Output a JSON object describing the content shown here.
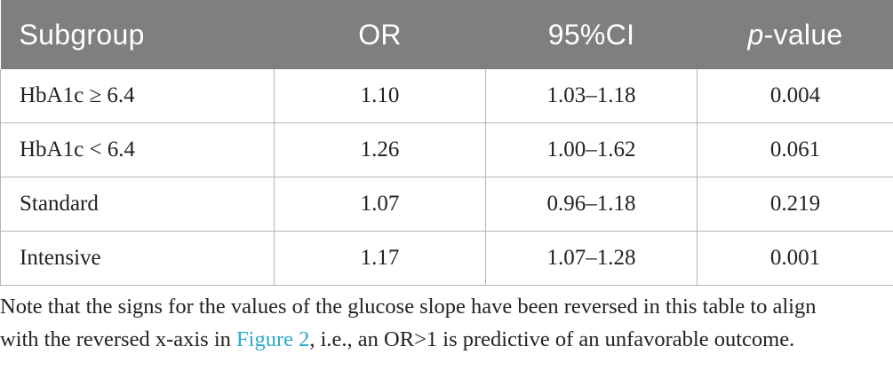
{
  "table": {
    "headers": {
      "subgroup": "Subgroup",
      "or": "OR",
      "ci": "95%CI",
      "p_italic": "p",
      "p_rest": "-value"
    },
    "rows": [
      {
        "subgroup": "HbA1c ≥ 6.4",
        "or": "1.10",
        "ci": "1.03–1.18",
        "p": "0.004"
      },
      {
        "subgroup": "HbA1c < 6.4",
        "or": "1.26",
        "ci": "1.00–1.62",
        "p": "0.061"
      },
      {
        "subgroup": "Standard",
        "or": "1.07",
        "ci": "0.96–1.18",
        "p": "0.219"
      },
      {
        "subgroup": "Intensive",
        "or": "1.17",
        "ci": "1.07–1.28",
        "p": "0.001"
      }
    ]
  },
  "note": {
    "line1": "Note that the signs for the values of the glucose slope have been reversed in this table to align",
    "line2_a": "with the reversed x-axis in ",
    "line2_link": "Figure 2",
    "line2_b": ", i.e., an OR>1 is predictive of an unfavorable outcome."
  },
  "colors": {
    "header_bg": "#7f7f7f",
    "header_text": "#ffffff",
    "grid": "#b5b5b5",
    "link": "#2aa9c9"
  }
}
